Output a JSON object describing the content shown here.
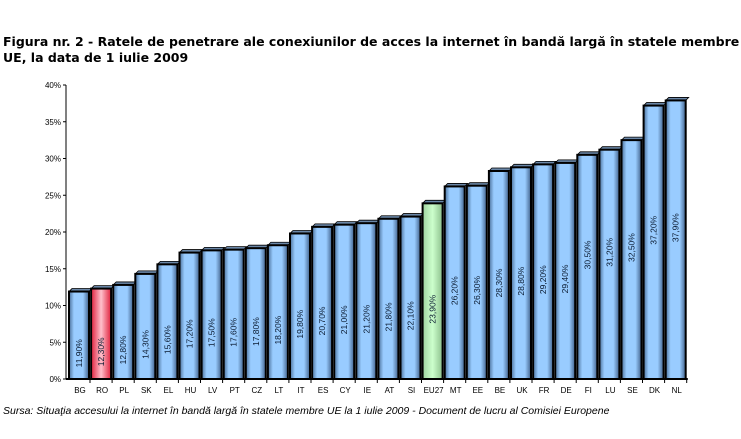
{
  "chart_data": {
    "type": "bar",
    "title": "Figura nr. 2 - Ratele de penetrare ale conexiunilor de acces la internet în bandă largă în statele membre UE, la data de 1 iulie 2009",
    "source": "Sursa: Situaţia accesului la internet în bandă largă în statele membre UE la 1 iulie 2009 - Document de lucru al Comisiei Europene",
    "categories": [
      "BG",
      "RO",
      "PL",
      "SK",
      "EL",
      "HU",
      "LV",
      "PT",
      "CZ",
      "LT",
      "IT",
      "ES",
      "CY",
      "IE",
      "AT",
      "SI",
      "EU27",
      "MT",
      "EE",
      "BE",
      "UK",
      "FR",
      "DE",
      "FI",
      "LU",
      "SE",
      "DK",
      "NL"
    ],
    "values": [
      11.9,
      12.3,
      12.8,
      14.3,
      15.6,
      17.2,
      17.5,
      17.6,
      17.8,
      18.2,
      19.8,
      20.7,
      21.0,
      21.2,
      21.8,
      22.1,
      23.9,
      26.2,
      26.3,
      28.3,
      28.8,
      29.2,
      29.4,
      30.5,
      31.2,
      32.5,
      37.2,
      37.9
    ],
    "data_labels": [
      "11,90%",
      "12,30%",
      "12,80%",
      "14,30%",
      "15,60%",
      "17,20%",
      "17,50%",
      "17,60%",
      "17,80%",
      "18,20%",
      "19,80%",
      "20,70%",
      "21,00%",
      "21,20%",
      "21,80%",
      "22,10%",
      "23,90%",
      "26,20%",
      "26,30%",
      "28,30%",
      "28,80%",
      "29,20%",
      "29,40%",
      "30,50%",
      "31,20%",
      "32,50%",
      "37,20%",
      "37,90%"
    ],
    "yticks": [
      "0%",
      "5%",
      "10%",
      "15%",
      "20%",
      "25%",
      "30%",
      "35%",
      "40%"
    ],
    "ylim": [
      0,
      40
    ],
    "xlabel": "",
    "ylabel": "",
    "grid": false,
    "colors": {
      "default": "#99ccff",
      "highlight_RO": "#ff6680",
      "highlight_EU27": "#ccffcc"
    }
  }
}
